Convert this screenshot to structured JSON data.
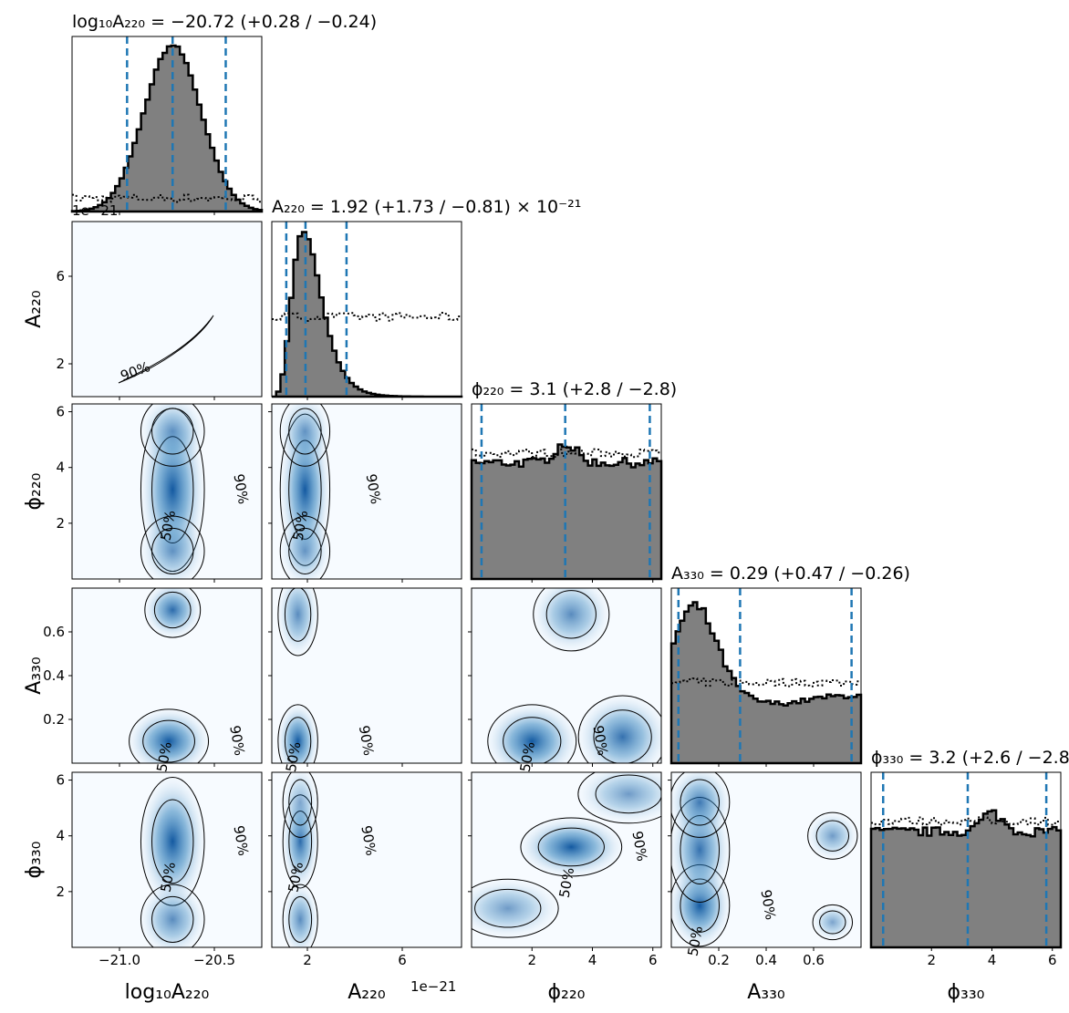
{
  "chart_data": {
    "type": "corner",
    "parameters": [
      {
        "key": "log10A220",
        "label": "log₁₀A₂₂₀",
        "range": [
          -21.25,
          -20.25
        ],
        "ticks": [
          -21.0,
          -20.5
        ],
        "tick_labels": [
          "−21.0",
          "−20.5"
        ],
        "title": "log₁₀A₂₂₀ = −20.72 (+0.28 / −0.24)",
        "median": -20.72,
        "lo": -20.96,
        "hi": -20.44
      },
      {
        "key": "A220",
        "label": "A₂₂₀",
        "range": [
          0.5,
          8.5
        ],
        "ticks": [
          2,
          6
        ],
        "tick_labels": [
          "2",
          "6"
        ],
        "offset_label": "1e−21",
        "title": "A₂₂₀ = 1.92 (+1.73 / −0.81) × 10⁻²¹",
        "median": 1.92,
        "lo": 1.11,
        "hi": 3.65
      },
      {
        "key": "phi220",
        "label": "ϕ₂₂₀",
        "range": [
          0.0,
          6.28
        ],
        "ticks": [
          2,
          4,
          6
        ],
        "tick_labels": [
          "2",
          "4",
          "6"
        ],
        "title": "ϕ₂₂₀ = 3.1 (+2.8 / −2.8)",
        "median": 3.1,
        "lo": 0.33,
        "hi": 5.9
      },
      {
        "key": "A330",
        "label": "A₃₃₀",
        "range": [
          0.0,
          0.8
        ],
        "ticks": [
          0.2,
          0.4,
          0.6
        ],
        "tick_labels": [
          "0.2",
          "0.4",
          "0.6"
        ],
        "title": "A₃₃₀ = 0.29 (+0.47 / −0.26)",
        "median": 0.29,
        "lo": 0.03,
        "hi": 0.76
      },
      {
        "key": "phi330",
        "label": "ϕ₃₃₀",
        "range": [
          0.0,
          6.28
        ],
        "ticks": [
          2,
          4,
          6
        ],
        "tick_labels": [
          "2",
          "4",
          "6"
        ],
        "title": "ϕ₃₃₀ = 3.2 (+2.6 / −2.8)",
        "median": 3.2,
        "lo": 0.4,
        "hi": 5.8
      }
    ],
    "y_tick_labels": {
      "A220": [
        "2",
        "6"
      ],
      "phi220": [
        "2",
        "4",
        "6"
      ],
      "A330": [
        "0.2",
        "0.4",
        "0.6"
      ],
      "phi330": [
        "2",
        "4",
        "6"
      ]
    },
    "contour_labels": [
      "50%",
      "90%"
    ],
    "colors": {
      "hist_fill": "#808080",
      "hist_edge": "#000000",
      "quantile": "#1f77b4",
      "kde": "#08519c",
      "kde_bg": "#f7fbff"
    }
  }
}
